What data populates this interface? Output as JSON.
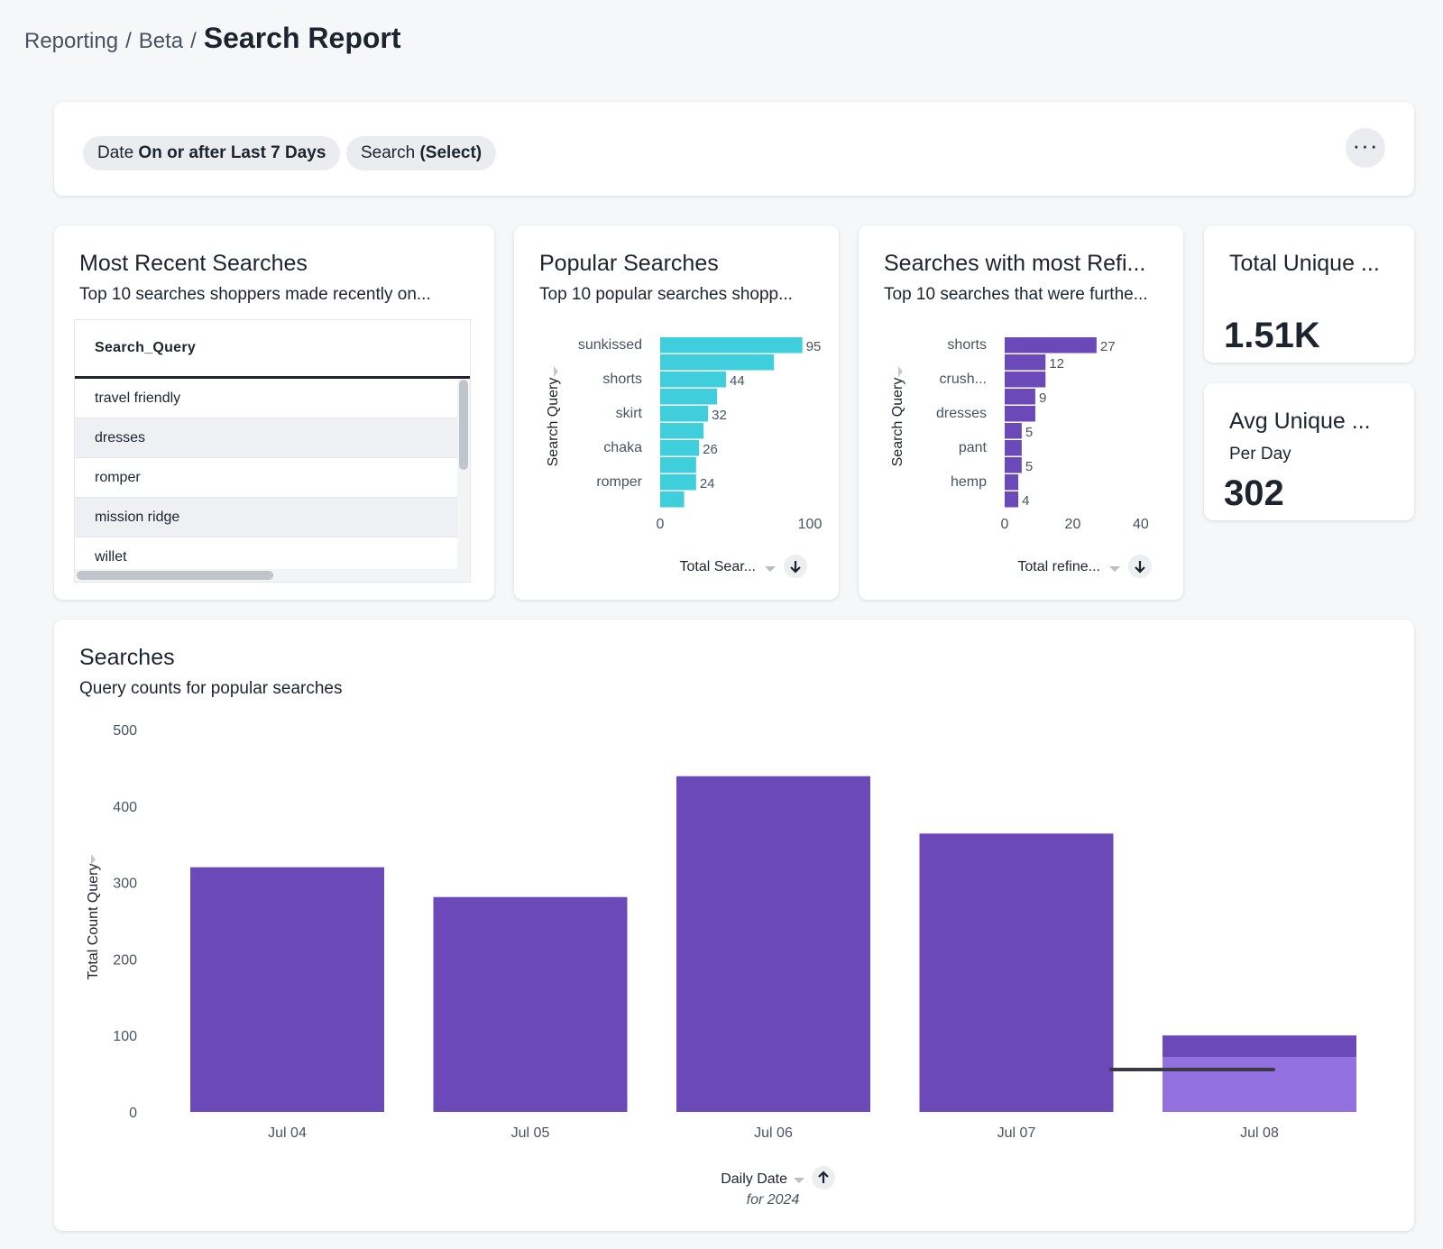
{
  "breadcrumb": {
    "part1": "Reporting",
    "part2": "Beta",
    "current": "Search Report",
    "separator": "/"
  },
  "filters": [
    {
      "label": "Date",
      "value": "On or after Last 7 Days"
    },
    {
      "label": "Search",
      "value": "(Select)"
    }
  ],
  "more_label": "···",
  "recent": {
    "title": "Most Recent Searches",
    "subtitle": "Top 10 searches shoppers made recently on...",
    "column": "Search_Query",
    "rows": [
      "travel friendly",
      "dresses",
      "romper",
      "mission ridge",
      "willet"
    ]
  },
  "popular": {
    "title": "Popular Searches",
    "subtitle": "Top 10 popular searches shopp...",
    "x_axis_label": "Total Sear...",
    "sort_icon": "arrow-down-icon",
    "color": "#3fcfdc",
    "chart_data": {
      "type": "bar",
      "orientation": "horizontal",
      "ylabel": "Search Query",
      "categories": [
        "sunkissed",
        "",
        "shorts",
        "",
        "skirt",
        "",
        "chaka",
        "",
        "romper",
        ""
      ],
      "values": [
        95,
        76,
        44,
        38,
        32,
        29,
        26,
        24,
        24,
        16
      ],
      "data_labels": [
        "95",
        "",
        "44",
        "",
        "32",
        "",
        "26",
        "",
        "24",
        ""
      ],
      "xlim": [
        0,
        100
      ],
      "xticks": [
        "0",
        "100"
      ]
    }
  },
  "refine": {
    "title": "Searches with most Refi...",
    "subtitle": "Top 10 searches that were furthe...",
    "x_axis_label": "Total refine...",
    "sort_icon": "arrow-down-icon",
    "color": "#6b49b8",
    "chart_data": {
      "type": "bar",
      "orientation": "horizontal",
      "ylabel": "Search Query",
      "categories": [
        "shorts",
        "",
        "crush...",
        "",
        "dresses",
        "",
        "pant",
        "",
        "hemp",
        ""
      ],
      "values": [
        27,
        12,
        12,
        9,
        9,
        5,
        5,
        5,
        4,
        4
      ],
      "data_labels": [
        "27",
        "12",
        "",
        "9",
        "",
        "5",
        "",
        "5",
        "",
        "4"
      ],
      "xlim": [
        0,
        44
      ],
      "xticks": [
        "0",
        "20",
        "40"
      ]
    }
  },
  "kpi1": {
    "title": "Total Unique ...",
    "value": "1.51K"
  },
  "kpi2": {
    "title": "Avg Unique ...",
    "subtitle": "Per Day",
    "value": "302"
  },
  "searches": {
    "title": "Searches",
    "subtitle": "Query counts for popular searches",
    "x_axis_label": "Daily Date",
    "x_axis_sublabel": "for 2024",
    "sort_icon": "arrow-up-icon",
    "colors": {
      "bar": "#6b49b8",
      "bar_light": "#9370e0",
      "line": "#3a3a44"
    },
    "chart_data": {
      "type": "bar",
      "ylabel": "Total Count Query",
      "categories": [
        "Jul 04",
        "Jul 05",
        "Jul 06",
        "Jul 07",
        "Jul 08"
      ],
      "values": [
        320,
        281,
        439,
        364,
        100
      ],
      "ylim": [
        0,
        500
      ],
      "yticks": [
        "0",
        "100",
        "200",
        "300",
        "400",
        "500"
      ]
    }
  }
}
